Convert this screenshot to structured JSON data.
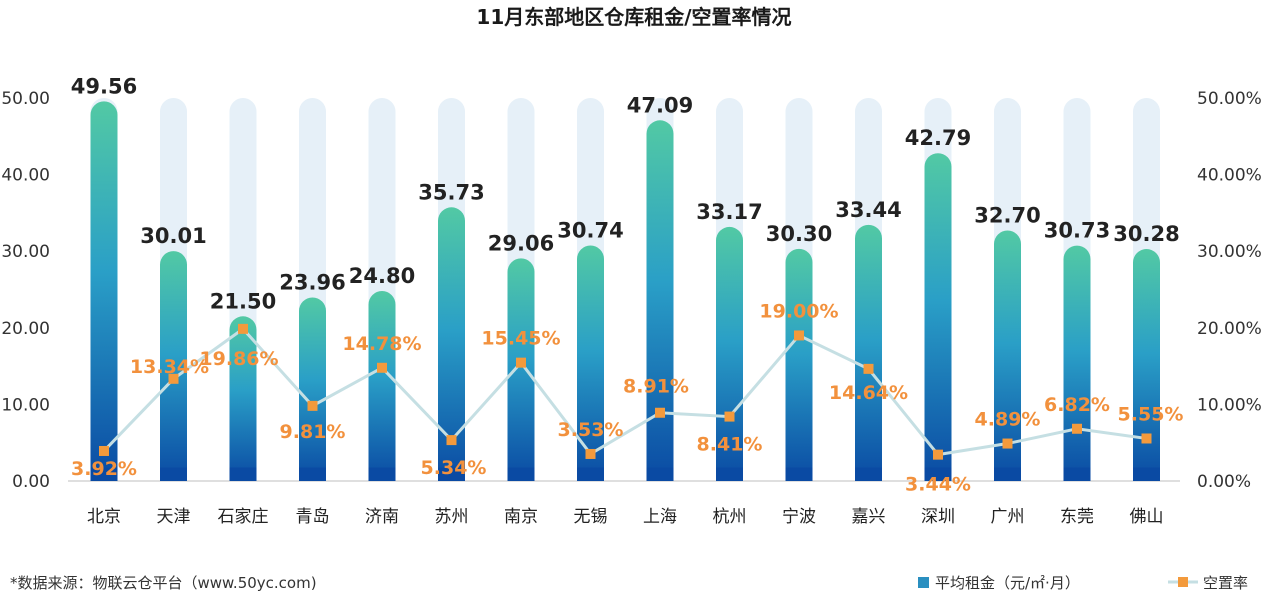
{
  "chart_data": {
    "type": "bar",
    "title": "11月东部地区仓库租金/空置率情况",
    "categories": [
      "北京",
      "天津",
      "石家庄",
      "青岛",
      "济南",
      "苏州",
      "南京",
      "无锡",
      "上海",
      "杭州",
      "宁波",
      "嘉兴",
      "深圳",
      "广州",
      "东莞",
      "佛山"
    ],
    "series": [
      {
        "name": "平均租金（元/㎡·月）",
        "type": "bar",
        "axis": "left",
        "values": [
          49.56,
          30.01,
          21.5,
          23.96,
          24.8,
          35.73,
          29.06,
          30.74,
          47.09,
          33.17,
          30.3,
          33.44,
          42.79,
          32.7,
          30.73,
          30.28
        ],
        "labels": [
          "49.56",
          "30.01",
          "21.50",
          "23.96",
          "24.80",
          "35.73",
          "29.06",
          "30.74",
          "47.09",
          "33.17",
          "30.30",
          "33.44",
          "42.79",
          "32.70",
          "30.73",
          "30.28"
        ]
      },
      {
        "name": "空置率",
        "type": "line",
        "axis": "right",
        "values": [
          3.92,
          13.34,
          19.86,
          9.81,
          14.78,
          5.34,
          15.45,
          3.53,
          8.91,
          8.41,
          19.0,
          14.64,
          3.44,
          4.89,
          6.82,
          5.55
        ],
        "labels": [
          "3.92%",
          "13.34%",
          "19.86%",
          "9.81%",
          "14.78%",
          "5.34%",
          "15.45%",
          "3.53%",
          "8.91%",
          "8.41%",
          "19.00%",
          "14.64%",
          "3.44%",
          "4.89%",
          "6.82%",
          "5.55%"
        ]
      }
    ],
    "ylim": [
      0,
      50
    ],
    "y2lim": [
      0,
      50
    ],
    "yticks": [
      "0.00",
      "10.00",
      "20.00",
      "30.00",
      "40.00",
      "50.00"
    ],
    "y2ticks": [
      "0.00%",
      "10.00%",
      "20.00%",
      "30.00%",
      "40.00%",
      "50.00%"
    ],
    "legend_position": "bottom-right",
    "grid": false
  },
  "footer": {
    "source": "*数据来源：物联云仓平台（www.50yc.com)"
  },
  "colors": {
    "bar_top": "#52c9a4",
    "bar_mid": "#2a9fc7",
    "bar_bottom": "#0a4aa3",
    "bar_background": "#e6f0f8",
    "line": "#c5dfe3",
    "marker": "#f39a3c",
    "rate_label": "#f2913d",
    "legend_bar": "#2a8fc0"
  }
}
